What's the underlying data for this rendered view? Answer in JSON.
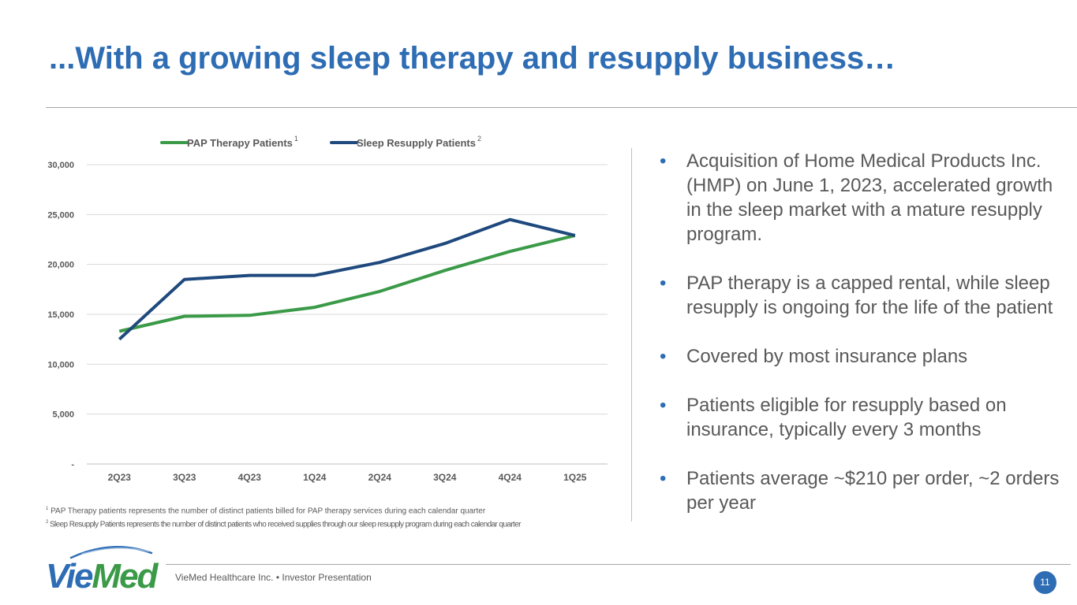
{
  "title": "...With a growing sleep therapy and resupply business…",
  "chart_data": {
    "type": "line",
    "categories": [
      "2Q23",
      "3Q23",
      "4Q23",
      "1Q24",
      "2Q24",
      "3Q24",
      "4Q24",
      "1Q25"
    ],
    "series": [
      {
        "name": "PAP Therapy Patients",
        "footnote_marker": "1",
        "color": "#3a9a47",
        "values": [
          13300,
          14800,
          14900,
          15700,
          17300,
          19400,
          21300,
          22900
        ]
      },
      {
        "name": "Sleep Resupply Patients",
        "footnote_marker": "2",
        "color": "#1f497d",
        "values": [
          12500,
          18500,
          18900,
          18900,
          20200,
          22100,
          24500,
          22900
        ]
      }
    ],
    "ylim": [
      0,
      30000
    ],
    "yticks": [
      {
        "value": 0,
        "label": "-"
      },
      {
        "value": 5000,
        "label": "5,000"
      },
      {
        "value": 10000,
        "label": "10,000"
      },
      {
        "value": 15000,
        "label": "15,000"
      },
      {
        "value": 20000,
        "label": "20,000"
      },
      {
        "value": 25000,
        "label": "25,000"
      },
      {
        "value": 30000,
        "label": "30,000"
      }
    ],
    "grid": true,
    "legend": "top-center",
    "xlabel": "",
    "ylabel": ""
  },
  "footnotes": {
    "fn1_marker": "1",
    "fn1": "PAP Therapy patients represents the number of distinct patients billed for PAP therapy services during each calendar quarter",
    "fn2_marker": "2",
    "fn2": "Sleep Resupply Patients represents the number of distinct patients who received supplies through our sleep resupply program during each calendar quarter"
  },
  "bullets": [
    "Acquisition of Home Medical Products Inc. (HMP) on June 1, 2023, accelerated growth in the sleep market with a mature resupply program.",
    "PAP therapy is a capped rental, while sleep resupply is ongoing for the life of the patient",
    "Covered by most insurance plans",
    "Patients eligible for resupply based on insurance, typically every 3 months",
    "Patients average ~$210 per order, ~2 orders per year"
  ],
  "bullet_char": "•",
  "footer": {
    "logo_text": "VieMed",
    "text": "VieMed Healthcare Inc.  •  Investor Presentation",
    "page_number": "11"
  },
  "colors": {
    "accent": "#2e6db4",
    "pap": "#3a9a47",
    "resupply": "#1f497d"
  }
}
